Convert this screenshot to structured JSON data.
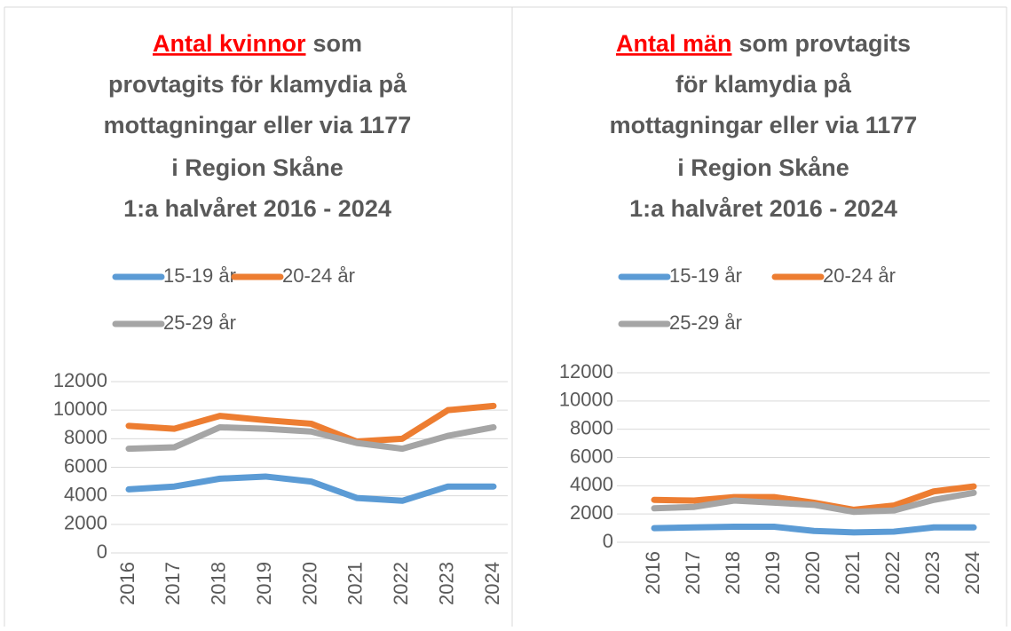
{
  "chart_data": [
    {
      "type": "line",
      "title_highlight": "Antal kvinnor",
      "title": [
        "som",
        "provtagits för klamydia på",
        "mottagningar eller via 1177",
        "i Region Skåne",
        "1:a halvåret 2016 - 2024"
      ],
      "categories": [
        "2016",
        "2017",
        "2018",
        "2019",
        "2020",
        "2021",
        "2022",
        "2023",
        "2024"
      ],
      "ylim": [
        0,
        12000
      ],
      "yticks": [
        0,
        2000,
        4000,
        6000,
        8000,
        10000,
        12000
      ],
      "grid": true,
      "series": [
        {
          "name": "15-19 år",
          "color": "#5b9bd5",
          "values": [
            4450,
            4650,
            5200,
            5350,
            5000,
            3850,
            3650,
            4650,
            4650
          ]
        },
        {
          "name": "20-24 år",
          "color": "#ed7d31",
          "values": [
            8900,
            8700,
            9600,
            9300,
            9050,
            7800,
            8000,
            10000,
            10300
          ]
        },
        {
          "name": "25-29 år",
          "color": "#a5a5a5",
          "values": [
            7300,
            7400,
            8800,
            8700,
            8500,
            7700,
            7300,
            8200,
            8800
          ]
        }
      ]
    },
    {
      "type": "line",
      "title_highlight": "Antal män",
      "title": [
        "som provtagits",
        "för klamydia på",
        "mottagningar eller via 1177",
        "i Region Skåne",
        "1:a halvåret 2016 - 2024"
      ],
      "categories": [
        "2016",
        "2017",
        "2018",
        "2019",
        "2020",
        "2021",
        "2022",
        "2023",
        "2024"
      ],
      "ylim": [
        0,
        12000
      ],
      "yticks": [
        0,
        2000,
        4000,
        6000,
        8000,
        10000,
        12000
      ],
      "grid": true,
      "series": [
        {
          "name": "15-19 år",
          "color": "#5b9bd5",
          "values": [
            1000,
            1050,
            1100,
            1100,
            800,
            700,
            750,
            1050,
            1050
          ]
        },
        {
          "name": "20-24 år",
          "color": "#ed7d31",
          "values": [
            3000,
            2950,
            3200,
            3200,
            2800,
            2300,
            2600,
            3600,
            3950
          ]
        },
        {
          "name": "25-29 år",
          "color": "#a5a5a5",
          "values": [
            2400,
            2500,
            2950,
            2800,
            2650,
            2150,
            2250,
            3000,
            3500
          ]
        }
      ]
    }
  ]
}
